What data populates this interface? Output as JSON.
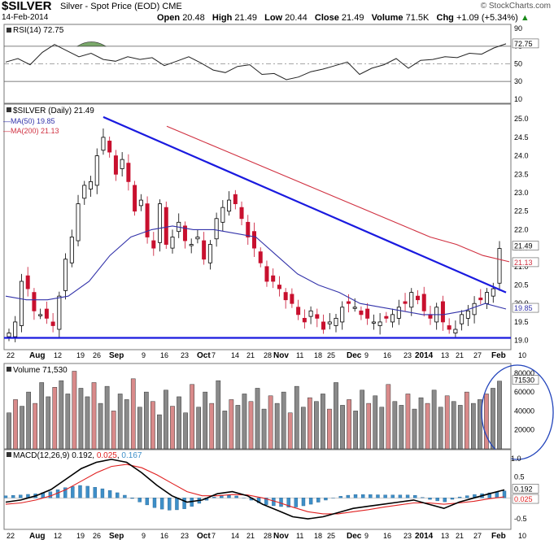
{
  "header": {
    "symbol": "$SILVER",
    "description": "Silver - Spot Price (EOD)",
    "exchange": "CME",
    "date": "14-Feb-2014",
    "open_label": "Open",
    "open": "20.48",
    "high_label": "High",
    "high": "21.49",
    "low_label": "Low",
    "low": "20.44",
    "close_label": "Close",
    "close": "21.49",
    "volume_label": "Volume",
    "volume": "71.5K",
    "chg_label": "Chg",
    "chg": "+1.09 (+5.34%)",
    "chg_arrow": "▲",
    "watermark": "© StockCharts.com"
  },
  "colors": {
    "up": "#000000",
    "down": "#c8102e",
    "ma50": "#3333aa",
    "ma200": "#d03040",
    "trend": "#1a1adf",
    "macd_hist": "#3e8fc8",
    "vol_up": "#8a8a8a",
    "vol_down": "#d98a8a"
  },
  "chart_data": [
    {
      "type": "line",
      "title": "RSI(14) 72.75",
      "series": [
        {
          "name": "RSI(14)",
          "last": 72.75,
          "values": [
            52,
            56,
            49,
            63,
            72,
            65,
            58,
            62,
            55,
            53,
            58,
            55,
            57,
            48,
            53,
            58,
            51,
            43,
            40,
            47,
            49,
            38,
            39,
            32,
            35,
            41,
            44,
            48,
            52,
            38,
            45,
            49,
            56,
            45,
            54,
            55,
            58,
            57,
            62,
            61,
            68,
            72.75
          ]
        }
      ],
      "ticks": [
        "90",
        "70",
        "50",
        "30",
        "10"
      ],
      "reference_lines": [
        70,
        30
      ],
      "last_label": "72.75"
    },
    {
      "type": "candlestick",
      "title": "$SILVER (Daily) 21.49",
      "legend": [
        "MA(50) 19.85",
        "MA(200) 21.13"
      ],
      "ma50_label": "19.85",
      "ma200_label": "21.13",
      "last_label": "21.49",
      "y_ticks": [
        "25.0",
        "24.5",
        "24.0",
        "23.5",
        "23.0",
        "22.5",
        "22.0",
        "21.5",
        "21.0",
        "20.5",
        "20.0",
        "19.5",
        "19.0"
      ],
      "x_labels": [
        "22",
        "Aug",
        "12",
        "19",
        "26",
        "Sep",
        "9",
        "16",
        "23",
        "Oct",
        "7",
        "14",
        "21",
        "28",
        "Nov",
        "11",
        "18",
        "25",
        "Dec",
        "9",
        "16",
        "23",
        "2014",
        "13",
        "21",
        "27",
        "Feb",
        "10"
      ],
      "closes": [
        19.2,
        19.5,
        20.6,
        20.4,
        19.8,
        19.7,
        19.6,
        19.4,
        20.2,
        21.2,
        21.8,
        22.7,
        23.2,
        23.3,
        24.0,
        24.5,
        24.1,
        23.5,
        23.9,
        23.3,
        22.5,
        22.8,
        21.8,
        21.5,
        22.7,
        21.6,
        21.8,
        22.2,
        21.7,
        21.6,
        21.8,
        21.2,
        21.6,
        22.3,
        22.6,
        22.8,
        22.7,
        22.3,
        21.8,
        21.5,
        21.1,
        20.6,
        20.6,
        20.4,
        20.1,
        20.0,
        19.7,
        19.5,
        19.8,
        19.6,
        19.3,
        19.5,
        19.6,
        19.9,
        20.0,
        19.9,
        19.7,
        19.6,
        19.5,
        19.5,
        19.6,
        19.7,
        19.9,
        20.0,
        20.3,
        20.1,
        19.8,
        19.6,
        19.9,
        19.5,
        19.3,
        19.3,
        19.7,
        19.8,
        20.0,
        20.1,
        20.3,
        20.4,
        21.49
      ],
      "ma50_values": [
        20.2,
        20.1,
        20.1,
        20.2,
        20.6,
        21.3,
        21.8,
        22.0,
        22.1,
        22.0,
        22.0,
        21.9,
        21.8,
        21.3,
        20.8,
        20.5,
        20.3,
        20.0,
        19.9,
        19.8,
        19.7,
        19.7,
        19.8,
        20.0,
        19.85
      ],
      "ma200_values": [
        24.8,
        24.5,
        24.2,
        23.9,
        23.6,
        23.3,
        23.0,
        22.7,
        22.4,
        22.1,
        21.8,
        21.6,
        21.3,
        21.13
      ],
      "trendlines": [
        "descending resistance",
        "horizontal support 19.0"
      ]
    },
    {
      "type": "bar",
      "title": "Volume 71,530",
      "last_label": "71530",
      "y_ticks": [
        "80000",
        "60000",
        "40000",
        "20000"
      ],
      "values": [
        38,
        52,
        45,
        60,
        48,
        70,
        55,
        65,
        72,
        58,
        82,
        64,
        55,
        70,
        48,
        66,
        40,
        58,
        52,
        74,
        44,
        60,
        50,
        36,
        62,
        45,
        55,
        38,
        68,
        44,
        60,
        48,
        72,
        40,
        52,
        46,
        58,
        50,
        64,
        42,
        56,
        48,
        60,
        38,
        66,
        44,
        54,
        50,
        58,
        42,
        70,
        46,
        52,
        40,
        62,
        48,
        56,
        44,
        68,
        50,
        46,
        58,
        42,
        54,
        48,
        62,
        44,
        56,
        50,
        46,
        60,
        48,
        52,
        58,
        64,
        71.53
      ]
    },
    {
      "type": "line",
      "title": "MACD(12,26,9) 0.192, 0.025, 0.167",
      "legend": [
        "MACD(12,26,9) 0.192",
        "0.025",
        "0.167"
      ],
      "label_values": [
        "0.192",
        "0.025"
      ],
      "y_ticks": [
        "1.0",
        "0.5",
        "0.0",
        "-0.5"
      ],
      "x_labels": [
        "22",
        "Aug",
        "12",
        "19",
        "26",
        "Sep",
        "9",
        "16",
        "23",
        "Oct",
        "7",
        "14",
        "21",
        "28",
        "Nov",
        "11",
        "18",
        "25",
        "Dec",
        "9",
        "16",
        "23",
        "2014",
        "13",
        "21",
        "27",
        "Feb",
        "10"
      ],
      "series": [
        {
          "name": "MACD(12,26,9)",
          "values": [
            -0.1,
            -0.05,
            0.05,
            0.2,
            0.45,
            0.7,
            0.85,
            0.92,
            0.85,
            0.6,
            0.3,
            0.05,
            -0.1,
            -0.05,
            0.1,
            0.15,
            0.05,
            -0.15,
            -0.3,
            -0.45,
            -0.5,
            -0.45,
            -0.35,
            -0.25,
            -0.2,
            -0.15,
            -0.1,
            -0.05,
            -0.15,
            -0.25,
            -0.1,
            0.0,
            0.1,
            0.192
          ]
        },
        {
          "name": "Signal",
          "values": [
            -0.15,
            -0.12,
            -0.05,
            0.05,
            0.2,
            0.4,
            0.6,
            0.75,
            0.8,
            0.72,
            0.55,
            0.35,
            0.15,
            0.05,
            0.05,
            0.08,
            0.07,
            0.0,
            -0.1,
            -0.22,
            -0.33,
            -0.38,
            -0.38,
            -0.33,
            -0.28,
            -0.22,
            -0.17,
            -0.12,
            -0.12,
            -0.15,
            -0.12,
            -0.08,
            -0.02,
            0.025
          ]
        },
        {
          "name": "Histogram",
          "values": [
            0.05,
            0.07,
            0.1,
            0.15,
            0.25,
            0.3,
            0.25,
            0.17,
            0.05,
            -0.12,
            -0.25,
            -0.3,
            -0.25,
            -0.1,
            0.05,
            0.07,
            -0.02,
            -0.15,
            -0.2,
            -0.23,
            -0.17,
            -0.07,
            0.03,
            0.08,
            0.08,
            0.07,
            0.07,
            0.07,
            -0.03,
            -0.1,
            0.02,
            0.08,
            0.12,
            0.167
          ]
        }
      ]
    }
  ]
}
